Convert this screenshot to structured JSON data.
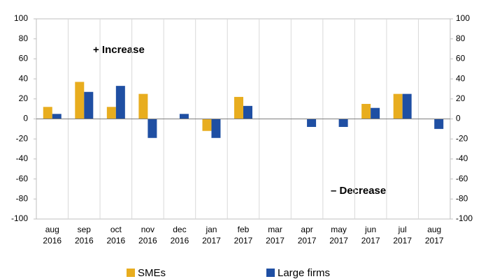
{
  "chart_data": {
    "type": "bar",
    "categories": [
      "aug 2016",
      "sep 2016",
      "oct 2016",
      "nov 2016",
      "dec 2016",
      "jan 2017",
      "feb 2017",
      "mar 2017",
      "apr 2017",
      "may 2017",
      "jun 2017",
      "jul 2017",
      "aug 2017"
    ],
    "series": [
      {
        "name": "SMEs",
        "color": "#e8ad1f",
        "values": [
          12,
          37,
          12,
          25,
          0,
          -12,
          22,
          0,
          0,
          0,
          15,
          25,
          0
        ]
      },
      {
        "name": "Large firms",
        "color": "#1f4fa3",
        "values": [
          5,
          27,
          33,
          -19,
          5,
          -19,
          13,
          0,
          -8,
          -8,
          11,
          25,
          -10
        ]
      }
    ],
    "ylim": [
      -100,
      100
    ],
    "yticks": [
      -100,
      -80,
      -60,
      -40,
      -20,
      0,
      20,
      40,
      60,
      80,
      100
    ],
    "y2lim": [
      -100,
      100
    ],
    "y2ticks": [
      -100,
      -80,
      -60,
      -40,
      -20,
      0,
      20,
      40,
      60,
      80,
      100
    ],
    "annotations": [
      "+ Increase",
      "– Decrease"
    ],
    "grid": false,
    "legend": "bottom"
  }
}
